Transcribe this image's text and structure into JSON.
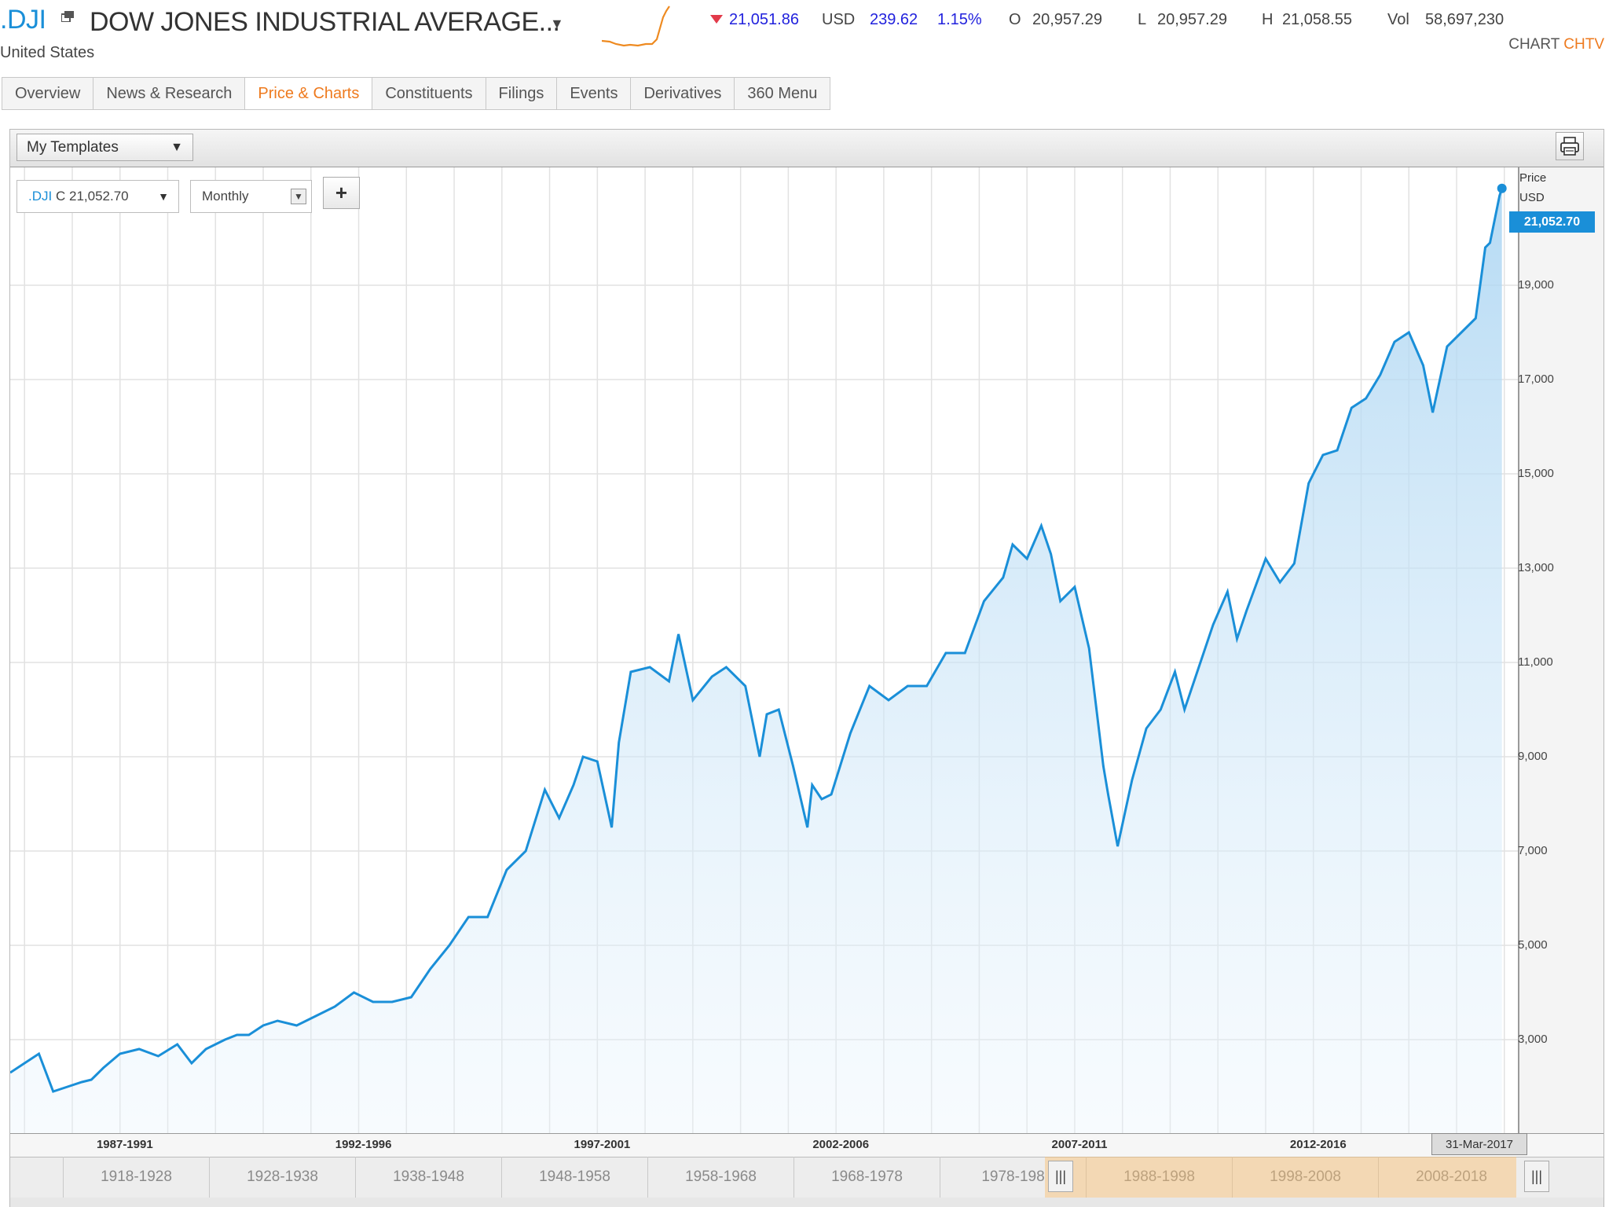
{
  "header": {
    "ric": ".DJI",
    "name": "DOW JONES INDUSTRIAL AVERAGE...",
    "country": "United States",
    "last": "21,051.86",
    "currency": "USD",
    "change": "239.62",
    "change_pct": "1.15%",
    "open_label": "O",
    "open": "20,957.29",
    "low_label": "L",
    "low": "20,957.29",
    "high_label": "H",
    "high": "21,058.55",
    "vol_label": "Vol",
    "vol": "58,697,230",
    "chart_link_a": "CHART",
    "chart_link_b": "CHTV"
  },
  "tabs": [
    {
      "label": "Overview",
      "active": false
    },
    {
      "label": "News & Research",
      "active": false
    },
    {
      "label": "Price & Charts",
      "active": true
    },
    {
      "label": "Constituents",
      "active": false
    },
    {
      "label": "Filings",
      "active": false
    },
    {
      "label": "Events",
      "active": false
    },
    {
      "label": "Derivatives",
      "active": false
    },
    {
      "label": "360 Menu",
      "active": false
    }
  ],
  "toolbar": {
    "templates_label": "My Templates",
    "dropdown_arrow": "▼"
  },
  "chart_controls": {
    "ric": ".DJI",
    "close_prefix": "C",
    "close_value": "21,052.70",
    "interval": "Monthly",
    "add_symbol": "+"
  },
  "axis": {
    "title_line1": "Price",
    "title_line2": "USD",
    "last_price_flag": "21,052.70",
    "date_flag": "31-Mar-2017"
  },
  "navigator": {
    "decades": [
      "1918-1928",
      "1928-1938",
      "1938-1948",
      "1948-1958",
      "1958-1968",
      "1968-1978",
      "1978-198",
      "1988-1998",
      "1998-2008",
      "2008-2018"
    ],
    "grip": "|||"
  },
  "colors": {
    "accent": "#1a8fd8",
    "active_tab": "#ee7a1e",
    "down": "#e23a4a",
    "quote_blue": "#2222dd"
  },
  "chart_data": {
    "type": "area",
    "ylim": [
      1000,
      21500
    ],
    "yticks": [
      3000,
      5000,
      7000,
      9000,
      11000,
      13000,
      15000,
      17000,
      19000
    ],
    "ytick_labels": [
      "3,000",
      "5,000",
      "7,000",
      "9,000",
      "11,000",
      "13,000",
      "15,000",
      "17,000",
      "19,000"
    ],
    "xlim": [
      1986.0,
      2017.6
    ],
    "xtick_labels": [
      "1987-1991",
      "1992-1996",
      "1997-2001",
      "2002-2006",
      "2007-2011",
      "2012-2016"
    ],
    "xtick_years": [
      1988.4,
      1993.4,
      1998.4,
      2003.4,
      2008.4,
      2013.4
    ],
    "series": [
      {
        "x": [
          1986.0,
          1986.3,
          1986.6,
          1986.9,
          1987.2,
          1987.5,
          1987.7,
          1987.8,
          1987.95,
          1988.3,
          1988.7,
          1989.1,
          1989.5,
          1989.8,
          1990.1,
          1990.5,
          1990.75,
          1991.0,
          1991.3,
          1991.6,
          1992.0,
          1992.4,
          1992.8,
          1993.2,
          1993.6,
          1994.0,
          1994.4,
          1994.8,
          1995.2,
          1995.6,
          1996.0,
          1996.4,
          1996.8,
          1997.2,
          1997.5,
          1997.8,
          1998.0,
          1998.3,
          1998.6,
          1998.75,
          1999.0,
          1999.4,
          1999.8,
          2000.0,
          2000.3,
          2000.7,
          2001.0,
          2001.4,
          2001.7,
          2001.85,
          2002.1,
          2002.4,
          2002.7,
          2002.8,
          2003.0,
          2003.2,
          2003.6,
          2004.0,
          2004.4,
          2004.8,
          2005.2,
          2005.6,
          2006.0,
          2006.4,
          2006.8,
          2007.0,
          2007.3,
          2007.6,
          2007.8,
          2008.0,
          2008.3,
          2008.6,
          2008.9,
          2009.0,
          2009.2,
          2009.5,
          2009.8,
          2010.1,
          2010.4,
          2010.6,
          2010.9,
          2011.2,
          2011.5,
          2011.7,
          2011.9,
          2012.3,
          2012.6,
          2012.9,
          2013.2,
          2013.5,
          2013.8,
          2014.1,
          2014.4,
          2014.7,
          2015.0,
          2015.3,
          2015.6,
          2015.8,
          2016.1,
          2016.4,
          2016.7,
          2016.9,
          2017.0,
          2017.2,
          2017.25
        ],
        "y": [
          2300,
          2500,
          2700,
          1900,
          2000,
          2100,
          2150,
          2250,
          2400,
          2700,
          2800,
          2650,
          2900,
          2500,
          2800,
          3000,
          3100,
          3100,
          3300,
          3400,
          3300,
          3500,
          3700,
          4000,
          3800,
          3800,
          3900,
          4500,
          5000,
          5600,
          5600,
          6600,
          7000,
          8300,
          7700,
          8400,
          9000,
          8900,
          7500,
          9300,
          10800,
          10900,
          10600,
          11600,
          10200,
          10700,
          10900,
          10500,
          9000,
          9900,
          10000,
          8800,
          7500,
          8400,
          8100,
          8200,
          9500,
          10500,
          10200,
          10500,
          10500,
          11200,
          11200,
          12300,
          12800,
          13500,
          13200,
          13900,
          13300,
          12300,
          12600,
          11300,
          8800,
          8200,
          7100,
          8500,
          9600,
          10000,
          10800,
          10000,
          10900,
          11800,
          12500,
          11500,
          12100,
          13200,
          12700,
          13100,
          14800,
          15400,
          15500,
          16400,
          16600,
          17100,
          17800,
          18000,
          17300,
          16300,
          17700,
          18000,
          18300,
          19800,
          19900,
          20900,
          21052.7
        ]
      }
    ]
  }
}
